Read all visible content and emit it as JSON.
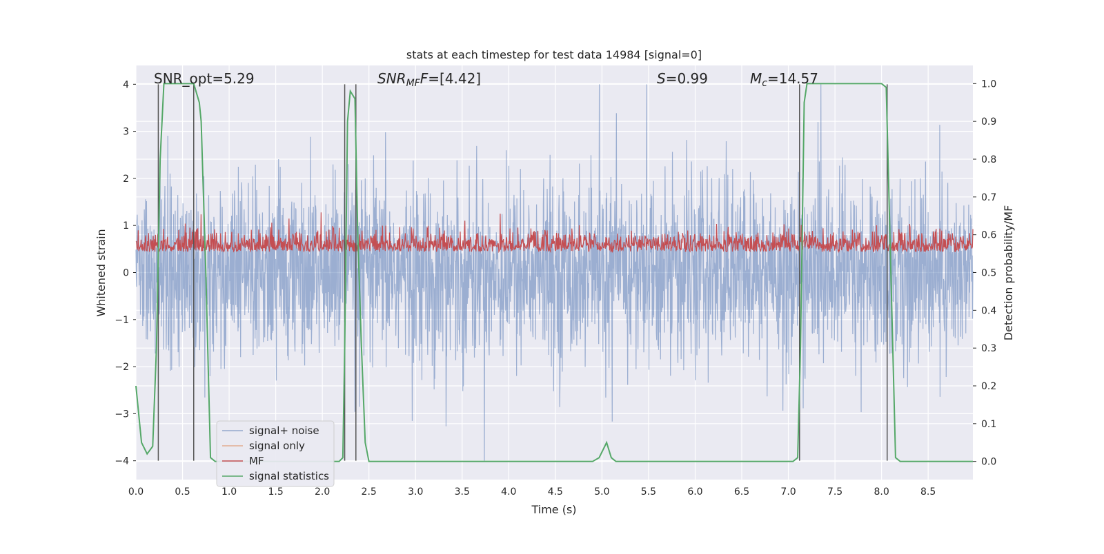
{
  "chart_data": {
    "type": "line",
    "title": "stats at each timestep for test data 14984 [signal=0]",
    "xlabel": "Time (s)",
    "ylabel_left": "Whitened strain",
    "ylabel_right": "Detection probability/MF",
    "xlim": [
      0,
      8.98
    ],
    "ylim_left": [
      -4.4,
      4.4
    ],
    "ylim_right": [
      -0.048,
      1.048
    ],
    "grid": true,
    "legend_position": "lower-left",
    "annotations": {
      "snr_opt": "SNR_opt=5.29",
      "snr_mf_sym": "SNR",
      "snr_mf_sub": "MF",
      "snr_mf_rest": "=[4.42]",
      "s_sym": "S",
      "s_rest": "=0.99",
      "mc_sym": "M",
      "mc_sub": "c",
      "mc_rest": "=14.57"
    },
    "x_ticks": [
      "0.0",
      "0.5",
      "1.0",
      "1.5",
      "2.0",
      "2.5",
      "3.0",
      "3.5",
      "4.0",
      "4.5",
      "5.0",
      "5.5",
      "6.0",
      "6.5",
      "7.0",
      "7.5",
      "8.0",
      "8.5"
    ],
    "x_tick_values": [
      0,
      0.5,
      1,
      1.5,
      2,
      2.5,
      3,
      3.5,
      4,
      4.5,
      5,
      5.5,
      6,
      6.5,
      7,
      7.5,
      8,
      8.5
    ],
    "y_left_ticks": [
      "−4",
      "−3",
      "−2",
      "−1",
      "0",
      "1",
      "2",
      "3",
      "4"
    ],
    "y_left_tick_values": [
      -4,
      -3,
      -2,
      -1,
      0,
      1,
      2,
      3,
      4
    ],
    "y_right_ticks": [
      "0.0",
      "0.1",
      "0.2",
      "0.3",
      "0.4",
      "0.5",
      "0.6",
      "0.7",
      "0.8",
      "0.9",
      "1.0"
    ],
    "y_right_tick_values": [
      0,
      0.1,
      0.2,
      0.3,
      0.4,
      0.5,
      0.6,
      0.7,
      0.8,
      0.9,
      1.0
    ],
    "series": [
      {
        "name": "signal+ noise",
        "color": "#4c72b0",
        "axis": "left",
        "amplitude_range": [
          -4.0,
          4.0
        ],
        "typical_band": [
          -1.8,
          2.0
        ]
      },
      {
        "name": "signal only",
        "color": "#dd8452",
        "axis": "left",
        "values": []
      },
      {
        "name": "MF",
        "color": "#c44e52",
        "axis": "right",
        "range": [
          0.5,
          0.66
        ]
      },
      {
        "name": "signal statistics",
        "color": "#55a868",
        "axis": "right",
        "x": [
          0.0,
          0.06,
          0.12,
          0.18,
          0.22,
          0.26,
          0.3,
          0.38,
          0.46,
          0.54,
          0.62,
          0.68,
          0.7,
          0.75,
          0.8,
          0.85,
          0.95,
          1.2,
          2.18,
          2.22,
          2.24,
          2.27,
          2.3,
          2.35,
          2.38,
          2.42,
          2.46,
          2.5,
          2.55,
          4.9,
          4.97,
          5.05,
          5.1,
          5.15,
          5.2,
          7.05,
          7.1,
          7.13,
          7.17,
          7.2,
          8.0,
          8.05,
          8.1,
          8.15,
          8.2,
          8.98
        ],
        "y": [
          0.2,
          0.05,
          0.02,
          0.04,
          0.3,
          0.8,
          1.0,
          1.0,
          1.0,
          1.0,
          1.0,
          0.95,
          0.9,
          0.5,
          0.01,
          0.0,
          0.0,
          0.0,
          0.0,
          0.01,
          0.3,
          0.9,
          0.98,
          0.96,
          0.6,
          0.3,
          0.05,
          0.0,
          0.0,
          0.0,
          0.01,
          0.05,
          0.01,
          0.0,
          0.0,
          0.0,
          0.01,
          0.3,
          0.95,
          1.0,
          1.0,
          0.99,
          0.5,
          0.01,
          0.0,
          0.0
        ]
      }
    ],
    "vertical_markers": [
      0.24,
      0.62,
      2.24,
      2.36,
      7.12,
      8.06
    ],
    "colors": {
      "plot_background": "#eaeaf2",
      "grid": "#ffffff",
      "marker_lines": "#555555"
    }
  }
}
